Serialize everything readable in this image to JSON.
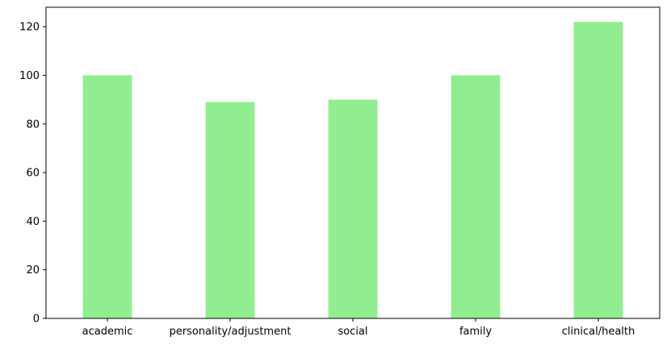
{
  "chart_data": {
    "type": "bar",
    "categories": [
      "academic",
      "personality/adjustment",
      "social",
      "family",
      "clinical/health"
    ],
    "values": [
      100,
      89,
      90,
      100,
      122
    ],
    "title": "",
    "xlabel": "",
    "ylabel": "",
    "ylim": [
      0,
      128
    ],
    "yticks": [
      0,
      20,
      40,
      60,
      80,
      100,
      120
    ],
    "bar_color": "#90ee90",
    "grid": false,
    "legend": "none"
  }
}
